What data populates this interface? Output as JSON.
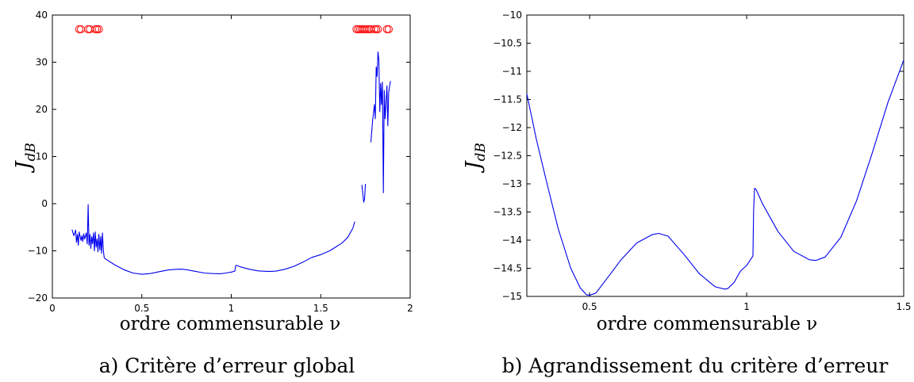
{
  "chart_data": [
    {
      "type": "line",
      "xlabel": "ordre commensurable ν",
      "ylabel_main": "J",
      "ylabel_sub": "dB",
      "caption": "a) Critère d’erreur global",
      "xlim": [
        0,
        2
      ],
      "ylim": [
        -20,
        40
      ],
      "xticks": [
        0,
        0.5,
        1,
        1.5,
        2
      ],
      "xtick_labels": [
        "0",
        "0.5",
        "1",
        "1.5",
        "2"
      ],
      "yticks": [
        -20,
        -10,
        0,
        10,
        20,
        30,
        40
      ],
      "ytick_labels": [
        "−20",
        "−10",
        "0",
        "10",
        "20",
        "30",
        "40"
      ],
      "grid": false,
      "colors": {
        "line": "#0000ee",
        "markers": "#ff0000"
      },
      "series": [
        {
          "style": "line",
          "x": [
            0.11,
            0.12,
            0.13,
            0.135,
            0.14,
            0.145,
            0.15,
            0.16,
            0.165,
            0.17,
            0.175,
            0.18,
            0.19,
            0.195,
            0.2,
            0.205,
            0.21,
            0.215,
            0.22,
            0.225,
            0.23,
            0.235,
            0.24,
            0.245,
            0.25,
            0.255,
            0.26,
            0.265,
            0.27,
            0.275,
            0.28,
            0.285,
            0.29,
            0.3,
            0.35,
            0.4,
            0.45,
            0.5,
            0.55,
            0.6,
            0.65,
            0.7,
            0.72,
            0.75,
            0.8,
            0.85,
            0.9,
            0.94,
            0.97,
            1.0,
            1.02,
            1.025,
            1.03,
            1.05,
            1.1,
            1.15,
            1.2,
            1.22,
            1.25,
            1.3,
            1.35,
            1.4,
            1.45,
            1.5,
            1.55,
            1.6,
            1.62,
            1.65,
            1.68,
            1.69
          ],
          "y": [
            -5.5,
            -6.8,
            -5.6,
            -8.2,
            -6.5,
            -8.8,
            -6.0,
            -7.8,
            -6.8,
            -8.0,
            -6.4,
            -7.5,
            -6.2,
            -8.5,
            -0.2,
            -8.8,
            -6.5,
            -9.5,
            -7.0,
            -8.5,
            -6.2,
            -10.0,
            -6.0,
            -9.2,
            -7.5,
            -10.2,
            -6.5,
            -9.8,
            -7.0,
            -10.5,
            -6.2,
            -10.0,
            -11.5,
            -11.8,
            -13.0,
            -14.0,
            -14.7,
            -14.98,
            -14.8,
            -14.4,
            -14.05,
            -13.9,
            -13.88,
            -14.0,
            -14.35,
            -14.7,
            -14.82,
            -14.85,
            -14.7,
            -14.5,
            -14.3,
            -13.1,
            -13.1,
            -13.4,
            -13.9,
            -14.25,
            -14.35,
            -14.36,
            -14.3,
            -13.9,
            -13.3,
            -12.4,
            -11.4,
            -10.8,
            -10.0,
            -8.8,
            -8.3,
            -7.2,
            -5.2,
            -3.8
          ]
        },
        {
          "style": "line",
          "x": [
            1.73,
            1.74,
            1.745,
            1.75
          ],
          "y": [
            4.0,
            0.3,
            1.0,
            4.2
          ]
        },
        {
          "style": "line",
          "x": [
            1.78,
            1.79,
            1.8,
            1.805,
            1.81,
            1.815,
            1.82,
            1.825,
            1.83,
            1.835,
            1.84,
            1.845,
            1.85,
            1.855,
            1.86,
            1.87,
            1.875,
            1.88,
            1.885,
            1.89
          ],
          "y": [
            13.0,
            17.5,
            21.0,
            18.0,
            29.0,
            27.0,
            32.2,
            30.5,
            19.5,
            25.5,
            21.0,
            25.8,
            2.3,
            24.0,
            18.0,
            25.0,
            16.5,
            23.5,
            25.0,
            26.0
          ]
        },
        {
          "style": "markers",
          "y_level": 37,
          "x": [
            0.15,
            0.16,
            0.2,
            0.21,
            0.24,
            0.25,
            0.26,
            1.7,
            1.71,
            1.72,
            1.73,
            1.74,
            1.75,
            1.76,
            1.77,
            1.78,
            1.8,
            1.81,
            1.82,
            1.87,
            1.88
          ]
        }
      ]
    },
    {
      "type": "line",
      "xlabel": "ordre commensurable ν",
      "ylabel_main": "J",
      "ylabel_sub": "dB",
      "caption": "b) Agrandissement du critère d’erreur",
      "xlim": [
        0.3,
        1.5
      ],
      "ylim": [
        -15,
        -10
      ],
      "xticks": [
        0.5,
        1,
        1.5
      ],
      "xtick_labels": [
        "0.5",
        "1",
        "1.5"
      ],
      "yticks": [
        -15,
        -14.5,
        -14,
        -13.5,
        -13,
        -12.5,
        -12,
        -11.5,
        -11,
        -10.5,
        -10
      ],
      "ytick_labels": [
        "−15",
        "−14.5",
        "−14",
        "−13.5",
        "−13",
        "−12.5",
        "−12",
        "−11.5",
        "−11",
        "−10.5",
        "−10"
      ],
      "grid": false,
      "colors": {
        "line": "#0000ee"
      },
      "series": [
        {
          "style": "line",
          "x": [
            0.3,
            0.33,
            0.36,
            0.4,
            0.44,
            0.47,
            0.49,
            0.5,
            0.52,
            0.55,
            0.6,
            0.65,
            0.7,
            0.72,
            0.75,
            0.8,
            0.85,
            0.9,
            0.93,
            0.94,
            0.96,
            0.98,
            1.0,
            1.02,
            1.022,
            1.025,
            1.03,
            1.05,
            1.1,
            1.15,
            1.2,
            1.22,
            1.25,
            1.3,
            1.35,
            1.4,
            1.45,
            1.5
          ],
          "y": [
            -11.4,
            -12.2,
            -12.9,
            -13.8,
            -14.5,
            -14.85,
            -14.97,
            -14.98,
            -14.94,
            -14.72,
            -14.35,
            -14.05,
            -13.9,
            -13.88,
            -13.93,
            -14.25,
            -14.6,
            -14.83,
            -14.87,
            -14.86,
            -14.75,
            -14.55,
            -14.45,
            -14.28,
            -13.5,
            -13.08,
            -13.1,
            -13.35,
            -13.85,
            -14.2,
            -14.35,
            -14.36,
            -14.3,
            -13.95,
            -13.3,
            -12.45,
            -11.55,
            -10.8
          ]
        }
      ]
    }
  ]
}
